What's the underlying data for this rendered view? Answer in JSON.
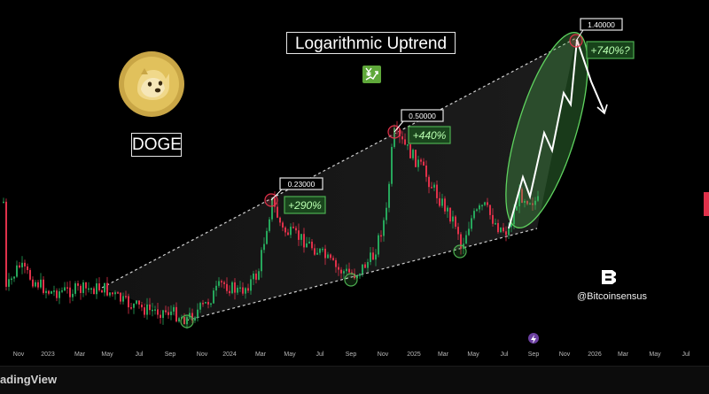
{
  "title": "Logarithmic Uptrend",
  "ticker": "DOGE",
  "brand_handle": "@Bitcoinsensus",
  "footer_text": "adingView",
  "x_ticks": [
    "Nov",
    "2023",
    "Mar",
    "May",
    "Jul",
    "Sep",
    "Nov",
    "2024",
    "Mar",
    "May",
    "Jul",
    "Sep",
    "Nov",
    "2025",
    "Mar",
    "May",
    "Jul",
    "Sep",
    "Nov",
    "2026",
    "Mar",
    "May",
    "Jul"
  ],
  "colors": {
    "background": "#000000",
    "up_candle": "#26a65b",
    "down_candle": "#e0314a",
    "projection_ellipse": "#4caf50",
    "trend_lines": "#cfcfcf"
  },
  "icons": [
    "doge-coin-logo",
    "trend-chart-icon",
    "bitcoinsensus-logo",
    "lightning-icon"
  ],
  "chart_data": {
    "type": "candlestick",
    "title": "Logarithmic Uptrend",
    "asset": "DOGE",
    "price_labels": [
      {
        "value": "0.23000",
        "gain": "+290%"
      },
      {
        "value": "0.50000",
        "gain": "+440%"
      },
      {
        "value": "1.40000",
        "gain": "+740%?"
      }
    ],
    "annotations": [
      "+290%",
      "+440%",
      "+740%?"
    ],
    "grid": false,
    "log_scale": true
  }
}
